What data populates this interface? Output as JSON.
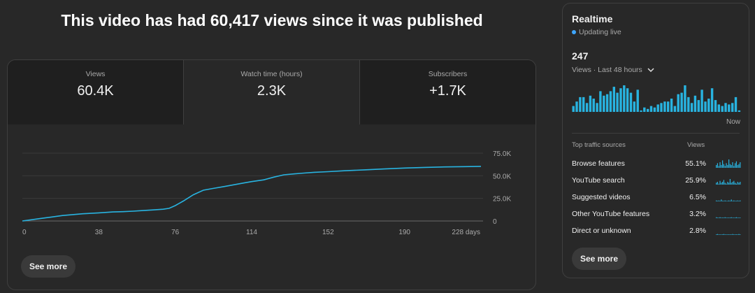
{
  "headline": "This video has had 60,417 views since it was published",
  "tabs": [
    {
      "label": "Views",
      "value": "60.4K"
    },
    {
      "label": "Watch time (hours)",
      "value": "2.3K"
    },
    {
      "label": "Subscribers",
      "value": "+1.7K"
    }
  ],
  "main_see_more": "See more",
  "chart_data": {
    "type": "line",
    "x_ticks": [
      "0",
      "38",
      "76",
      "114",
      "152",
      "190",
      "228 days"
    ],
    "y_ticks": [
      "75.0K",
      "50.0K",
      "25.0K",
      "0"
    ],
    "xlim": [
      0,
      228
    ],
    "ylim": [
      0,
      75000
    ],
    "series": [
      {
        "x": [
          0,
          5,
          10,
          15,
          20,
          25,
          30,
          38,
          45,
          50,
          55,
          60,
          65,
          70,
          73,
          76,
          80,
          85,
          90,
          95,
          100,
          105,
          110,
          114,
          120,
          125,
          130,
          135,
          140,
          145,
          152,
          160,
          170,
          180,
          190,
          200,
          210,
          220,
          228
        ],
        "y": [
          0,
          1500,
          3000,
          4500,
          6000,
          7000,
          8000,
          9000,
          10000,
          10300,
          10800,
          11500,
          12200,
          13000,
          14000,
          17000,
          22000,
          29000,
          34000,
          36000,
          38000,
          40000,
          42000,
          43500,
          45500,
          48500,
          51000,
          52000,
          53000,
          53800,
          54500,
          55500,
          56500,
          57500,
          58500,
          59200,
          59800,
          60100,
          60417
        ]
      }
    ],
    "color": "#28b3e0"
  },
  "realtime": {
    "title": "Realtime",
    "status": "Updating live",
    "count": "247",
    "period": "Views · Last 48 hours",
    "now_label": "Now",
    "bars": [
      4,
      7,
      10,
      10,
      6,
      11,
      9,
      6,
      14,
      11,
      12,
      14,
      17,
      13,
      16,
      18,
      16,
      13,
      7,
      15,
      1,
      3,
      2,
      4,
      3,
      5,
      6,
      7,
      7,
      9,
      4,
      12,
      13,
      18,
      10,
      6,
      11,
      8,
      15,
      7,
      9,
      16,
      8,
      5,
      4,
      6,
      5,
      6,
      10,
      1
    ],
    "bar_color": "#28b3e0",
    "traffic_header": {
      "source": "Top traffic sources",
      "views": "Views"
    },
    "traffic": [
      {
        "name": "Browse features",
        "pct": "55.1%",
        "spark": [
          3,
          5,
          2,
          6,
          3,
          8,
          4,
          2,
          5,
          3,
          9,
          4,
          3,
          6,
          2,
          5,
          7,
          3,
          4,
          6
        ]
      },
      {
        "name": "YouTube search",
        "pct": "25.9%",
        "spark": [
          2,
          3,
          1,
          4,
          2,
          3,
          5,
          2,
          1,
          3,
          2,
          6,
          2,
          3,
          4,
          2,
          1,
          3,
          2,
          3
        ]
      },
      {
        "name": "Suggested videos",
        "pct": "6.5%",
        "spark": [
          1,
          0,
          1,
          0,
          2,
          0,
          0,
          1,
          0,
          0,
          1,
          0,
          2,
          0,
          1,
          0,
          0,
          1,
          0,
          1
        ]
      },
      {
        "name": "Other YouTube features",
        "pct": "3.2%",
        "spark": [
          1,
          0,
          0,
          1,
          0,
          0,
          0,
          1,
          0,
          0,
          0,
          0,
          1,
          0,
          0,
          0,
          1,
          0,
          0,
          0
        ]
      },
      {
        "name": "Direct or unknown",
        "pct": "2.8%",
        "spark": [
          0,
          1,
          0,
          0,
          0,
          0,
          1,
          0,
          0,
          0,
          0,
          0,
          0,
          1,
          0,
          0,
          0,
          0,
          1,
          0
        ]
      }
    ],
    "see_more": "See more"
  }
}
